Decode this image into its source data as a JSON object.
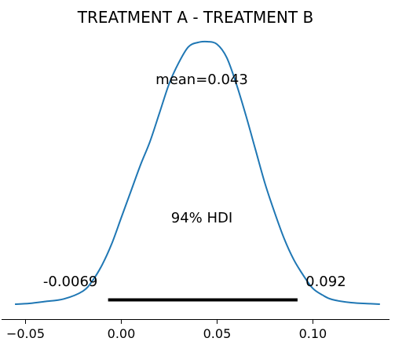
{
  "chart_data": {
    "type": "line",
    "title": "TREATMENT A - TREATMENT B",
    "xlabel": "",
    "ylabel": "",
    "xlim": [
      -0.0625,
      0.14
    ],
    "ylim": [
      0,
      1
    ],
    "x_ticks": [
      {
        "value": -0.05,
        "label": "−0.05"
      },
      {
        "value": 0.0,
        "label": "0.00"
      },
      {
        "value": 0.05,
        "label": "0.05"
      },
      {
        "value": 0.1,
        "label": "0.10"
      }
    ],
    "grid": false,
    "y_axis_visible": false,
    "series": [
      {
        "color": "#1f77b4",
        "x": [
          -0.0555,
          -0.048,
          -0.04,
          -0.03,
          -0.02,
          -0.015,
          -0.01,
          -0.005,
          0.0,
          0.005,
          0.01,
          0.015,
          0.02,
          0.025,
          0.03,
          0.035,
          0.04,
          0.045,
          0.05,
          0.055,
          0.06,
          0.065,
          0.07,
          0.075,
          0.08,
          0.085,
          0.09,
          0.095,
          0.1,
          0.105,
          0.11,
          0.12,
          0.13,
          0.135
        ],
        "y": [
          0.0,
          0.003,
          0.01,
          0.02,
          0.05,
          0.09,
          0.15,
          0.23,
          0.33,
          0.43,
          0.53,
          0.62,
          0.73,
          0.84,
          0.92,
          0.98,
          0.997,
          1.0,
          0.99,
          0.94,
          0.84,
          0.72,
          0.59,
          0.46,
          0.35,
          0.25,
          0.17,
          0.11,
          0.06,
          0.035,
          0.018,
          0.006,
          0.002,
          0.0
        ]
      }
    ],
    "annotations": {
      "mean_label": "mean=0.043",
      "hdi_label": "94% HDI",
      "hdi_low": -0.0069,
      "hdi_high": 0.092,
      "hdi_low_label": "-0.0069",
      "hdi_high_label": "0.092"
    }
  }
}
